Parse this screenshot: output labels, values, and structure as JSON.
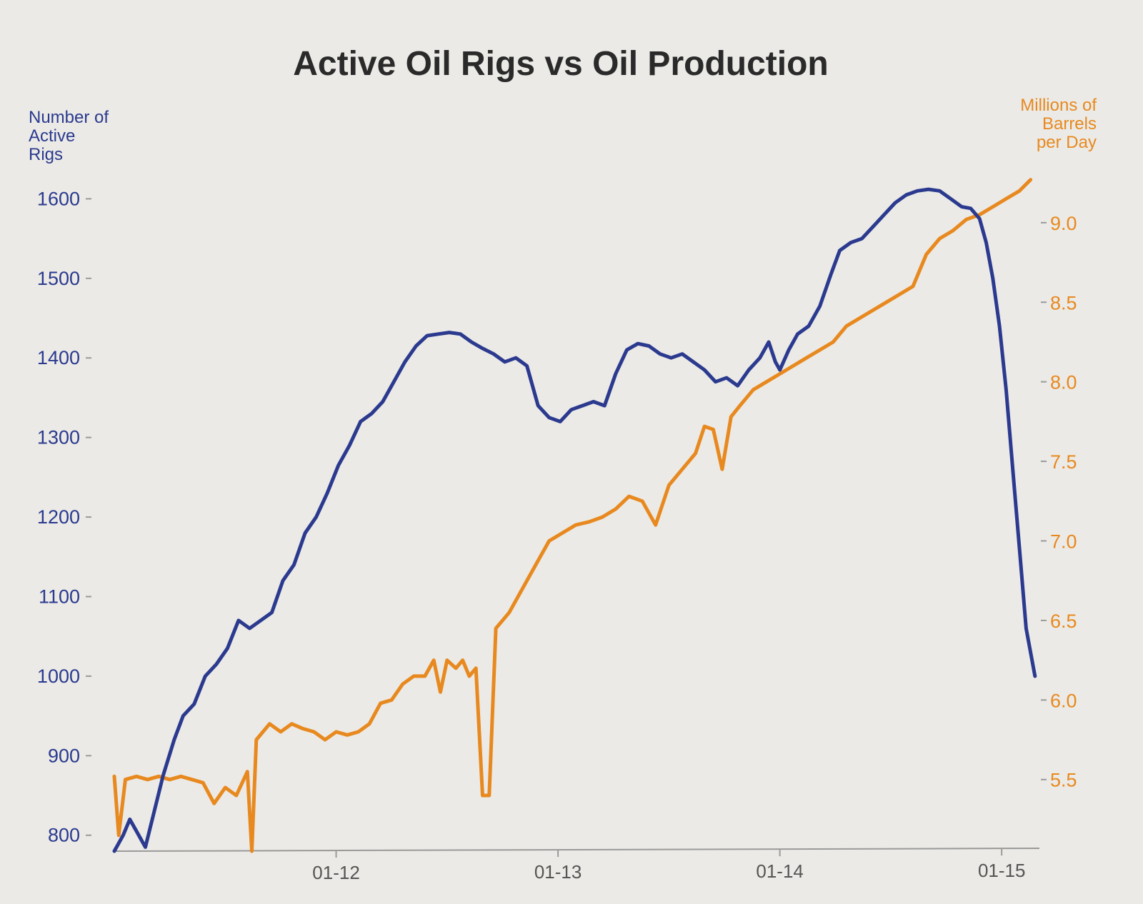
{
  "colors": {
    "background": "#ebeae6",
    "rigs": "#2b3a8f",
    "production": "#e8891f",
    "axis": "#9a9a9a",
    "title": "#2a2a2a"
  },
  "chart_data": {
    "type": "line",
    "title": "Active Oil Rigs vs Oil Production",
    "left_axis": {
      "label_lines": [
        "Number of",
        "Active",
        "Rigs"
      ],
      "range": [
        780,
        1630
      ],
      "ticks": [
        800,
        900,
        1000,
        1100,
        1200,
        1300,
        1400,
        1500,
        1600
      ],
      "tick_labels": [
        "800",
        "900",
        "1000",
        "1100",
        "1200",
        "1300",
        "1400",
        "1500",
        "1600"
      ]
    },
    "right_axis": {
      "label_lines": [
        "Millions of",
        "Barrels",
        "per Day"
      ],
      "range": [
        5.05,
        9.3
      ],
      "ticks": [
        5.5,
        6.0,
        6.5,
        7.0,
        7.5,
        8.0,
        8.5,
        9.0
      ],
      "tick_labels": [
        "5.5",
        "6.0",
        "6.5",
        "7.0",
        "7.5",
        "8.0",
        "8.5",
        "9.0"
      ]
    },
    "x_axis": {
      "range": [
        2011.0,
        2015.17
      ],
      "ticks": [
        2012.0,
        2013.0,
        2014.0,
        2015.0
      ],
      "tick_labels": [
        "01-12",
        "01-13",
        "01-14",
        "01-15"
      ]
    },
    "series": [
      {
        "name": "Active Oil Rigs",
        "axis": "left",
        "color": "#2b3a8f",
        "points": [
          [
            2011.0,
            780
          ],
          [
            2011.04,
            800
          ],
          [
            2011.07,
            820
          ],
          [
            2011.1,
            805
          ],
          [
            2011.14,
            785
          ],
          [
            2011.18,
            830
          ],
          [
            2011.22,
            875
          ],
          [
            2011.27,
            920
          ],
          [
            2011.31,
            950
          ],
          [
            2011.36,
            965
          ],
          [
            2011.41,
            1000
          ],
          [
            2011.46,
            1015
          ],
          [
            2011.51,
            1035
          ],
          [
            2011.56,
            1070
          ],
          [
            2011.61,
            1060
          ],
          [
            2011.66,
            1070
          ],
          [
            2011.71,
            1080
          ],
          [
            2011.76,
            1120
          ],
          [
            2011.81,
            1140
          ],
          [
            2011.86,
            1180
          ],
          [
            2011.91,
            1200
          ],
          [
            2011.96,
            1230
          ],
          [
            2012.01,
            1265
          ],
          [
            2012.06,
            1290
          ],
          [
            2012.11,
            1320
          ],
          [
            2012.16,
            1330
          ],
          [
            2012.21,
            1345
          ],
          [
            2012.26,
            1370
          ],
          [
            2012.31,
            1395
          ],
          [
            2012.36,
            1415
          ],
          [
            2012.41,
            1428
          ],
          [
            2012.46,
            1430
          ],
          [
            2012.51,
            1432
          ],
          [
            2012.56,
            1430
          ],
          [
            2012.61,
            1420
          ],
          [
            2012.66,
            1412
          ],
          [
            2012.71,
            1405
          ],
          [
            2012.76,
            1395
          ],
          [
            2012.81,
            1400
          ],
          [
            2012.86,
            1390
          ],
          [
            2012.91,
            1340
          ],
          [
            2012.96,
            1325
          ],
          [
            2013.01,
            1320
          ],
          [
            2013.06,
            1335
          ],
          [
            2013.11,
            1340
          ],
          [
            2013.16,
            1345
          ],
          [
            2013.21,
            1340
          ],
          [
            2013.26,
            1380
          ],
          [
            2013.31,
            1410
          ],
          [
            2013.36,
            1418
          ],
          [
            2013.41,
            1415
          ],
          [
            2013.46,
            1405
          ],
          [
            2013.51,
            1400
          ],
          [
            2013.56,
            1405
          ],
          [
            2013.61,
            1395
          ],
          [
            2013.66,
            1385
          ],
          [
            2013.71,
            1370
          ],
          [
            2013.76,
            1375
          ],
          [
            2013.81,
            1365
          ],
          [
            2013.86,
            1385
          ],
          [
            2013.91,
            1400
          ],
          [
            2013.95,
            1420
          ],
          [
            2013.98,
            1395
          ],
          [
            2014.0,
            1385
          ],
          [
            2014.04,
            1410
          ],
          [
            2014.08,
            1430
          ],
          [
            2014.13,
            1440
          ],
          [
            2014.18,
            1465
          ],
          [
            2014.23,
            1505
          ],
          [
            2014.27,
            1535
          ],
          [
            2014.32,
            1545
          ],
          [
            2014.37,
            1550
          ],
          [
            2014.42,
            1565
          ],
          [
            2014.47,
            1580
          ],
          [
            2014.52,
            1595
          ],
          [
            2014.57,
            1605
          ],
          [
            2014.62,
            1610
          ],
          [
            2014.67,
            1612
          ],
          [
            2014.72,
            1610
          ],
          [
            2014.77,
            1600
          ],
          [
            2014.82,
            1590
          ],
          [
            2014.86,
            1588
          ],
          [
            2014.9,
            1575
          ],
          [
            2014.93,
            1545
          ],
          [
            2014.96,
            1500
          ],
          [
            2014.99,
            1440
          ],
          [
            2015.02,
            1360
          ],
          [
            2015.05,
            1260
          ],
          [
            2015.08,
            1160
          ],
          [
            2015.11,
            1060
          ],
          [
            2015.15,
            1000
          ]
        ]
      },
      {
        "name": "Oil Production",
        "axis": "right",
        "color": "#e8891f",
        "points": [
          [
            2011.0,
            5.52
          ],
          [
            2011.02,
            5.15
          ],
          [
            2011.05,
            5.5
          ],
          [
            2011.1,
            5.52
          ],
          [
            2011.15,
            5.5
          ],
          [
            2011.2,
            5.52
          ],
          [
            2011.25,
            5.5
          ],
          [
            2011.3,
            5.52
          ],
          [
            2011.35,
            5.5
          ],
          [
            2011.4,
            5.48
          ],
          [
            2011.45,
            5.35
          ],
          [
            2011.5,
            5.45
          ],
          [
            2011.55,
            5.4
          ],
          [
            2011.6,
            5.55
          ],
          [
            2011.62,
            5.05
          ],
          [
            2011.64,
            5.75
          ],
          [
            2011.7,
            5.85
          ],
          [
            2011.75,
            5.8
          ],
          [
            2011.8,
            5.85
          ],
          [
            2011.85,
            5.82
          ],
          [
            2011.9,
            5.8
          ],
          [
            2011.95,
            5.75
          ],
          [
            2012.0,
            5.8
          ],
          [
            2012.05,
            5.78
          ],
          [
            2012.1,
            5.8
          ],
          [
            2012.15,
            5.85
          ],
          [
            2012.2,
            5.98
          ],
          [
            2012.25,
            6.0
          ],
          [
            2012.3,
            6.1
          ],
          [
            2012.35,
            6.15
          ],
          [
            2012.4,
            6.15
          ],
          [
            2012.44,
            6.25
          ],
          [
            2012.47,
            6.05
          ],
          [
            2012.5,
            6.25
          ],
          [
            2012.54,
            6.2
          ],
          [
            2012.57,
            6.25
          ],
          [
            2012.6,
            6.15
          ],
          [
            2012.63,
            6.2
          ],
          [
            2012.66,
            5.4
          ],
          [
            2012.69,
            5.4
          ],
          [
            2012.72,
            6.45
          ],
          [
            2012.78,
            6.55
          ],
          [
            2012.84,
            6.7
          ],
          [
            2012.9,
            6.85
          ],
          [
            2012.96,
            7.0
          ],
          [
            2013.02,
            7.05
          ],
          [
            2013.08,
            7.1
          ],
          [
            2013.14,
            7.12
          ],
          [
            2013.2,
            7.15
          ],
          [
            2013.26,
            7.2
          ],
          [
            2013.32,
            7.28
          ],
          [
            2013.38,
            7.25
          ],
          [
            2013.44,
            7.1
          ],
          [
            2013.5,
            7.35
          ],
          [
            2013.56,
            7.45
          ],
          [
            2013.62,
            7.55
          ],
          [
            2013.66,
            7.72
          ],
          [
            2013.7,
            7.7
          ],
          [
            2013.74,
            7.45
          ],
          [
            2013.78,
            7.78
          ],
          [
            2013.82,
            7.85
          ],
          [
            2013.88,
            7.95
          ],
          [
            2013.94,
            8.0
          ],
          [
            2014.0,
            8.05
          ],
          [
            2014.06,
            8.1
          ],
          [
            2014.12,
            8.15
          ],
          [
            2014.18,
            8.2
          ],
          [
            2014.24,
            8.25
          ],
          [
            2014.3,
            8.35
          ],
          [
            2014.36,
            8.4
          ],
          [
            2014.42,
            8.45
          ],
          [
            2014.48,
            8.5
          ],
          [
            2014.54,
            8.55
          ],
          [
            2014.6,
            8.6
          ],
          [
            2014.66,
            8.8
          ],
          [
            2014.72,
            8.9
          ],
          [
            2014.78,
            8.95
          ],
          [
            2014.84,
            9.02
          ],
          [
            2014.9,
            9.05
          ],
          [
            2014.96,
            9.1
          ],
          [
            2015.02,
            9.15
          ],
          [
            2015.08,
            9.2
          ],
          [
            2015.13,
            9.27
          ]
        ]
      }
    ]
  }
}
